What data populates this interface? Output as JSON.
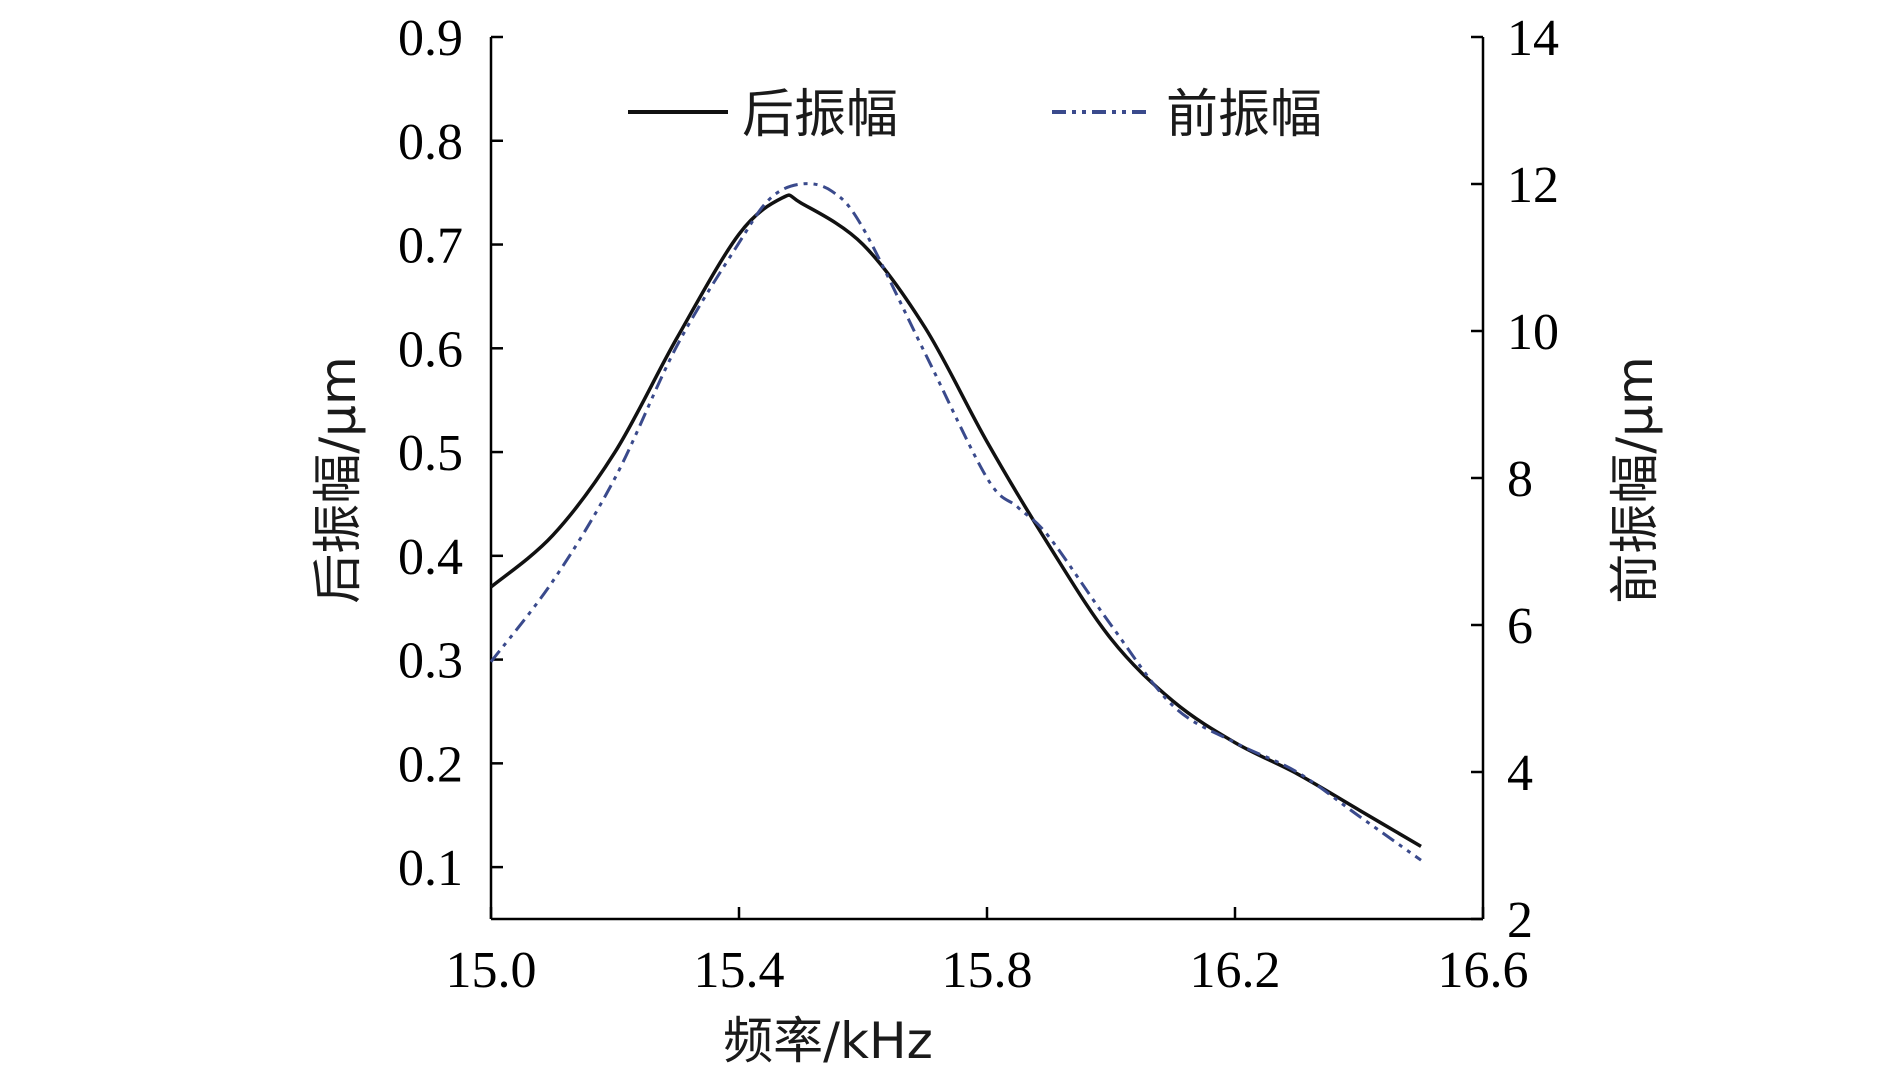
{
  "chart_data": {
    "type": "line",
    "xlabel": "频率/kHz",
    "ylabel_left": "后振幅/μm",
    "ylabel_right": "前振幅/μm",
    "xlim": [
      15.0,
      16.6
    ],
    "ylim_left": [
      0.05,
      0.9
    ],
    "ylim_right": [
      2,
      14
    ],
    "x_ticks": [
      "15.0",
      "15.4",
      "15.8",
      "16.2",
      "16.6"
    ],
    "y_left_ticks": [
      "0.1",
      "0.2",
      "0.3",
      "0.4",
      "0.5",
      "0.6",
      "0.7",
      "0.8",
      "0.9"
    ],
    "y_right_ticks": [
      "2",
      "4",
      "6",
      "8",
      "10",
      "12",
      "14"
    ],
    "legend_position": "top",
    "grid": false,
    "series": [
      {
        "name": "后振幅",
        "axis": "left",
        "style": "solid",
        "color": "#111111",
        "x": [
          15.0,
          15.1,
          15.2,
          15.3,
          15.4,
          15.47,
          15.5,
          15.6,
          15.7,
          15.8,
          15.9,
          16.0,
          16.1,
          16.2,
          16.3,
          16.4,
          16.5
        ],
        "y": [
          0.37,
          0.42,
          0.5,
          0.61,
          0.71,
          0.745,
          0.74,
          0.7,
          0.62,
          0.51,
          0.41,
          0.32,
          0.26,
          0.22,
          0.19,
          0.155,
          0.12
        ]
      },
      {
        "name": "前振幅",
        "axis": "right",
        "style": "dashdot",
        "color": "#3a4a8c",
        "x": [
          15.0,
          15.1,
          15.2,
          15.3,
          15.4,
          15.45,
          15.5,
          15.55,
          15.6,
          15.7,
          15.8,
          15.85,
          15.9,
          16.0,
          16.1,
          16.2,
          16.3,
          16.4,
          16.5
        ],
        "y": [
          5.5,
          6.6,
          8.0,
          9.8,
          11.2,
          11.8,
          12.0,
          11.9,
          11.4,
          9.7,
          8.0,
          7.6,
          7.2,
          6.0,
          4.9,
          4.4,
          4.0,
          3.4,
          2.8
        ]
      }
    ]
  }
}
